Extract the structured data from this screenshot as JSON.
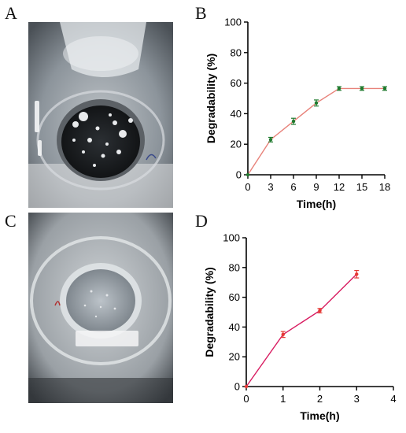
{
  "panels": {
    "a": {
      "letter": "A"
    },
    "b": {
      "letter": "B"
    },
    "c": {
      "letter": "C"
    },
    "d": {
      "letter": "D"
    }
  },
  "chart_data": [
    {
      "panel": "B",
      "type": "line",
      "title": "",
      "xlabel": "Time(h)",
      "ylabel": "Degradability (%)",
      "xlim": [
        0,
        18
      ],
      "ylim": [
        0,
        100
      ],
      "xticks": [
        0,
        3,
        6,
        9,
        12,
        15,
        18
      ],
      "yticks": [
        0,
        20,
        40,
        60,
        80,
        100
      ],
      "grid": false,
      "line_color": "#e8827a",
      "marker_color": "#1f7a2e",
      "x": [
        0,
        3,
        6,
        9,
        12,
        15,
        18
      ],
      "y": [
        0,
        23,
        35,
        47,
        56.5,
        56.5,
        56.5
      ],
      "error": [
        0,
        1.5,
        2,
        2,
        1.2,
        1.2,
        1.2
      ]
    },
    {
      "panel": "D",
      "type": "line",
      "title": "",
      "xlabel": "Time(h)",
      "ylabel": "Degradability (%)",
      "xlim": [
        0,
        4
      ],
      "ylim": [
        0,
        100
      ],
      "xticks": [
        0,
        1,
        2,
        3,
        4
      ],
      "yticks": [
        0,
        20,
        40,
        60,
        80,
        100
      ],
      "grid": false,
      "line_color": "#d81b60",
      "marker_color": "#e53935",
      "x": [
        0,
        1,
        2,
        3
      ],
      "y": [
        0,
        35,
        51,
        75.5
      ],
      "error": [
        0,
        2,
        1.5,
        2.5
      ]
    }
  ]
}
